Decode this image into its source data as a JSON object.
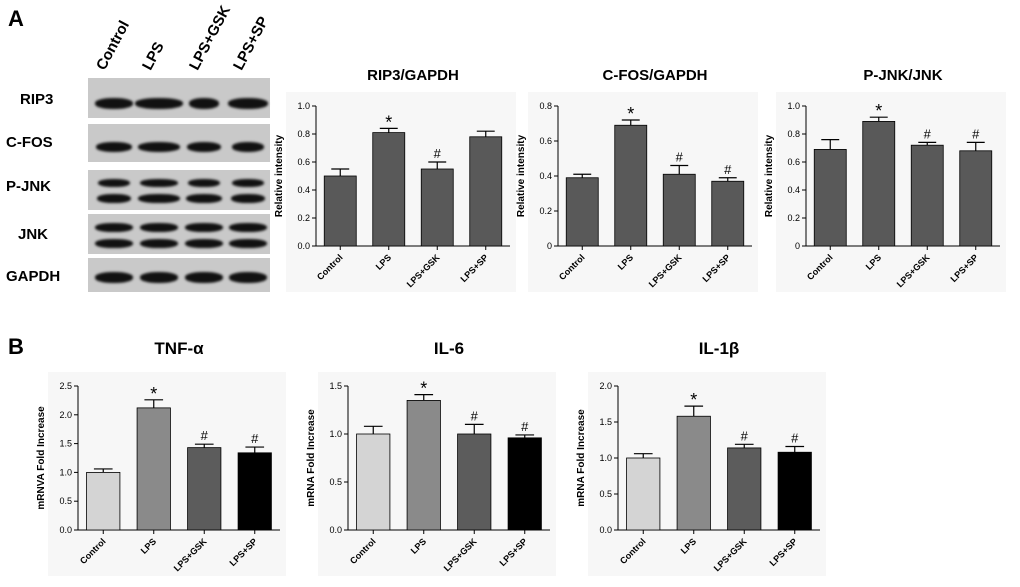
{
  "panel_labels": {
    "a": "A",
    "b": "B"
  },
  "western_blot": {
    "lanes": [
      "Control",
      "LPS",
      "LPS+GSK",
      "LPS+SP"
    ],
    "proteins": [
      "RIP3",
      "C-FOS",
      "P-JNK",
      "JNK",
      "GAPDH"
    ]
  },
  "chart_data": [
    {
      "type": "bar",
      "title": "RIP3/GAPDH",
      "ylabel": "Relative intensity",
      "xlabel": "",
      "categories": [
        "Control",
        "LPS",
        "LPS+GSK",
        "LPS+SP"
      ],
      "values": [
        0.5,
        0.81,
        0.55,
        0.78
      ],
      "errors": [
        0.05,
        0.03,
        0.05,
        0.04
      ],
      "annotations": [
        "",
        "*",
        "#",
        ""
      ],
      "ylim": [
        0,
        1.0
      ],
      "yticks": [
        0.0,
        0.2,
        0.4,
        0.6,
        0.8,
        1.0
      ],
      "ytick_labels": [
        "0.0",
        "0.2",
        "0.4",
        "0.6",
        "0.8",
        "1.0"
      ],
      "bar_colors": [
        "#595959",
        "#595959",
        "#595959",
        "#595959"
      ],
      "grid": false,
      "background": "#f7f7f7"
    },
    {
      "type": "bar",
      "title": "C-FOS/GAPDH",
      "ylabel": "Relative intensity",
      "xlabel": "",
      "categories": [
        "Control",
        "LPS",
        "LPS+GSK",
        "LPS+SP"
      ],
      "values": [
        0.39,
        0.69,
        0.41,
        0.37
      ],
      "errors": [
        0.02,
        0.03,
        0.05,
        0.02
      ],
      "annotations": [
        "",
        "*",
        "#",
        "#"
      ],
      "ylim": [
        0,
        0.8
      ],
      "yticks": [
        0.0,
        0.2,
        0.4,
        0.6,
        0.8
      ],
      "ytick_labels": [
        "0",
        "0.2",
        "0.4",
        "0.6",
        "0.8"
      ],
      "bar_colors": [
        "#595959",
        "#595959",
        "#595959",
        "#595959"
      ],
      "grid": false,
      "background": "#f7f7f7"
    },
    {
      "type": "bar",
      "title": "P-JNK/JNK",
      "ylabel": "Relative intensity",
      "xlabel": "",
      "categories": [
        "Control",
        "LPS",
        "LPS+GSK",
        "LPS+SP"
      ],
      "values": [
        0.69,
        0.89,
        0.72,
        0.68
      ],
      "errors": [
        0.07,
        0.03,
        0.02,
        0.06
      ],
      "annotations": [
        "",
        "*",
        "#",
        "#"
      ],
      "ylim": [
        0,
        1.0
      ],
      "yticks": [
        0.0,
        0.2,
        0.4,
        0.6,
        0.8,
        1.0
      ],
      "ytick_labels": [
        "0",
        "0.2",
        "0.4",
        "0.6",
        "0.8",
        "1.0"
      ],
      "bar_colors": [
        "#595959",
        "#595959",
        "#595959",
        "#595959"
      ],
      "grid": false,
      "background": "#f7f7f7"
    },
    {
      "type": "bar",
      "title": "TNF-α",
      "ylabel": "mRNVA Fold Increase",
      "xlabel": "",
      "categories": [
        "Control",
        "LPS",
        "LPS+GSK",
        "LPS+SP"
      ],
      "values": [
        1.0,
        2.12,
        1.43,
        1.34
      ],
      "errors": [
        0.06,
        0.14,
        0.06,
        0.1
      ],
      "annotations": [
        "",
        "*",
        "#",
        "#"
      ],
      "ylim": [
        0,
        2.5
      ],
      "yticks": [
        0.0,
        0.5,
        1.0,
        1.5,
        2.0,
        2.5
      ],
      "ytick_labels": [
        "0.0",
        "0.5",
        "1.0",
        "1.5",
        "2.0",
        "2.5"
      ],
      "bar_colors": [
        "#d4d4d4",
        "#8a8a8a",
        "#5c5c5c",
        "#000000"
      ],
      "grid": false,
      "background": "#f7f7f7"
    },
    {
      "type": "bar",
      "title": "IL-6",
      "ylabel": "mRNA Fold Increase",
      "xlabel": "",
      "categories": [
        "Control",
        "LPS",
        "LPS+GSK",
        "LPS+SP"
      ],
      "values": [
        1.0,
        1.35,
        1.0,
        0.96
      ],
      "errors": [
        0.08,
        0.06,
        0.1,
        0.03
      ],
      "annotations": [
        "",
        "*",
        "#",
        "#"
      ],
      "ylim": [
        0,
        1.5
      ],
      "yticks": [
        0.0,
        0.5,
        1.0,
        1.5
      ],
      "ytick_labels": [
        "0.0",
        "0.5",
        "1.0",
        "1.5"
      ],
      "bar_colors": [
        "#d4d4d4",
        "#8a8a8a",
        "#5c5c5c",
        "#000000"
      ],
      "grid": false,
      "background": "#f7f7f7"
    },
    {
      "type": "bar",
      "title": "IL-1β",
      "ylabel": "mRNA Fold Increase",
      "xlabel": "",
      "categories": [
        "Control",
        "LPS",
        "LPS+GSK",
        "LPS+SP"
      ],
      "values": [
        1.0,
        1.58,
        1.14,
        1.08
      ],
      "errors": [
        0.06,
        0.14,
        0.05,
        0.08
      ],
      "annotations": [
        "",
        "*",
        "#",
        "#"
      ],
      "ylim": [
        0,
        2.0
      ],
      "yticks": [
        0.0,
        0.5,
        1.0,
        1.5,
        2.0
      ],
      "ytick_labels": [
        "0.0",
        "0.5",
        "1.0",
        "1.5",
        "2.0"
      ],
      "bar_colors": [
        "#d4d4d4",
        "#8a8a8a",
        "#5c5c5c",
        "#000000"
      ],
      "grid": false,
      "background": "#f7f7f7"
    }
  ]
}
